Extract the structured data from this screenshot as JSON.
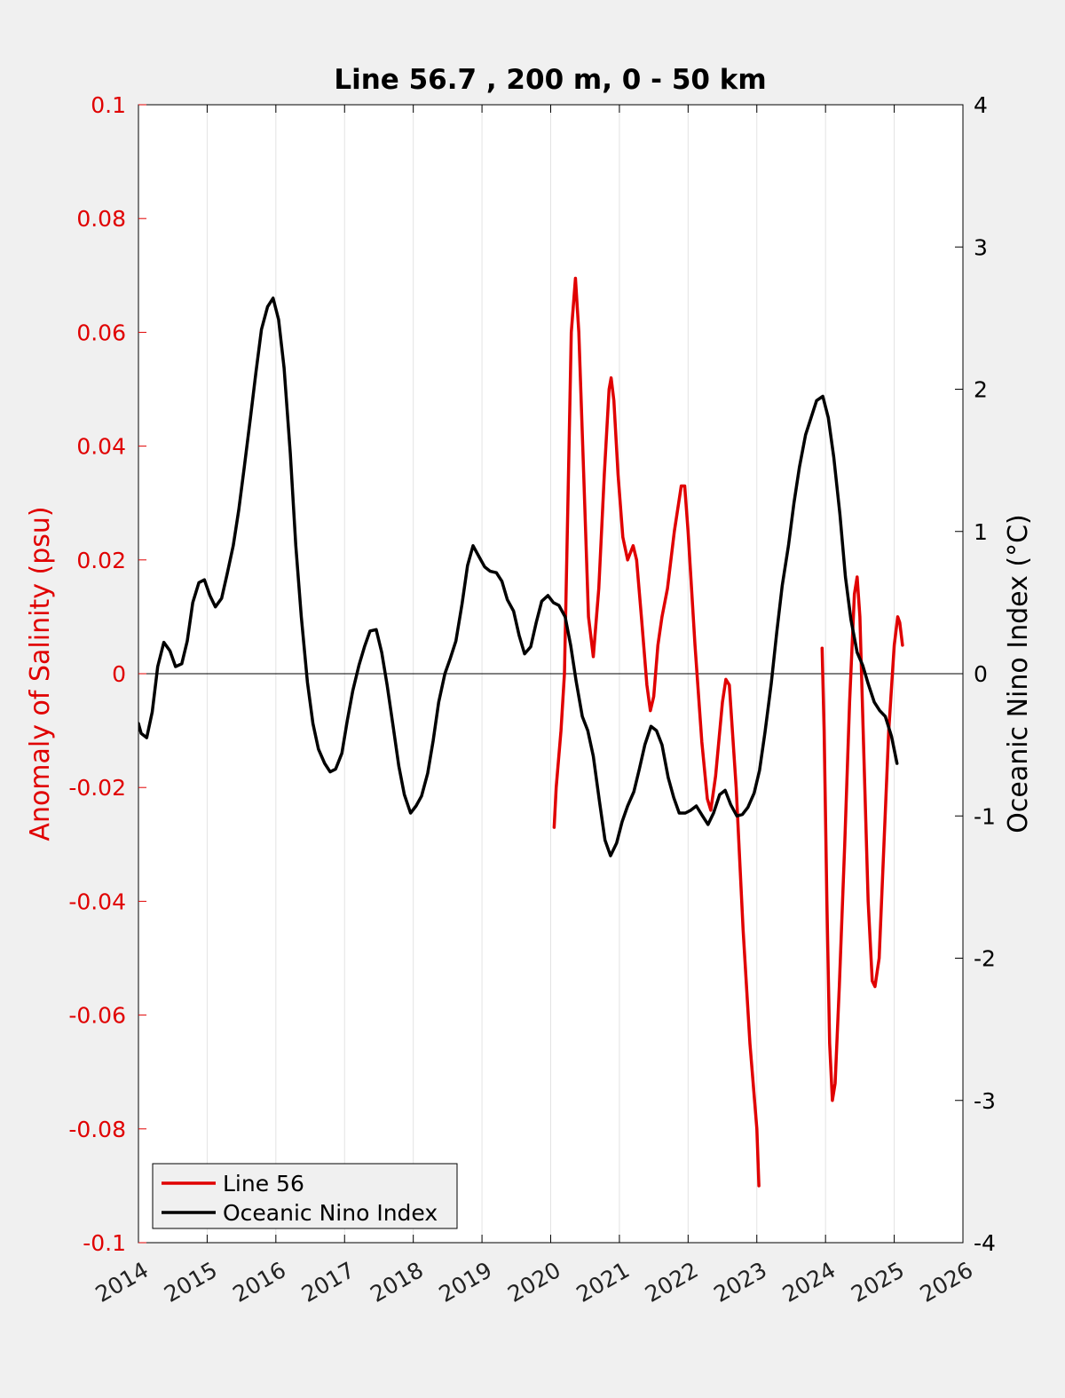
{
  "colors": {
    "background": "#f0f0f0",
    "plot_background": "#ffffff",
    "salinity": "#e00000",
    "oni": "#000000",
    "grid": "#e3e3e3",
    "axis": "#000000"
  },
  "chart_data": {
    "type": "line",
    "title": "Line 56.7 , 200 m, 0 - 50 km",
    "xlabel": "",
    "ylabel_left": "Anomaly of Salinity (psu)",
    "ylabel_right": "Oceanic Nino Index (°C)",
    "xlim": [
      2014,
      2026
    ],
    "ylim_left": [
      -0.1,
      0.1
    ],
    "ylim_right": [
      -4,
      4
    ],
    "x_ticks": [
      2014,
      2015,
      2016,
      2017,
      2018,
      2019,
      2020,
      2021,
      2022,
      2023,
      2024,
      2025,
      2026
    ],
    "x_tick_labels": [
      "2014",
      "2015",
      "2016",
      "2017",
      "2018",
      "2019",
      "2020",
      "2021",
      "2022",
      "2023",
      "2024",
      "2025",
      "2026"
    ],
    "y_left_ticks": [
      0.1,
      0.08,
      0.06,
      0.04,
      0.02,
      0,
      -0.02,
      -0.04,
      -0.06,
      -0.08,
      -0.1
    ],
    "y_left_tick_labels": [
      "0.1",
      "0.08",
      "0.06",
      "0.04",
      "0.02",
      "0",
      "-0.02",
      "-0.04",
      "-0.06",
      "-0.08",
      "-0.1"
    ],
    "y_right_ticks": [
      4,
      3,
      2,
      1,
      0,
      -1,
      -2,
      -3,
      -4
    ],
    "y_right_tick_labels": [
      "4",
      "3",
      "2",
      "1",
      "0",
      "-1",
      "-2",
      "-3",
      "-4"
    ],
    "grid": "x-only",
    "zero_line": true,
    "legend": {
      "position": "bottom-left",
      "entries": [
        "Line 56",
        "Oceanic Nino Index"
      ]
    },
    "series": [
      {
        "name": "Line 56",
        "axis": "left",
        "color": "#e00000",
        "segments": [
          [
            [
              2020.05,
              -0.027
            ],
            [
              2020.08,
              -0.02
            ],
            [
              2020.15,
              -0.01
            ],
            [
              2020.2,
              0.0
            ],
            [
              2020.25,
              0.03
            ],
            [
              2020.3,
              0.06
            ],
            [
              2020.36,
              0.0695
            ],
            [
              2020.41,
              0.06
            ],
            [
              2020.48,
              0.035
            ],
            [
              2020.55,
              0.01
            ],
            [
              2020.62,
              0.003
            ],
            [
              2020.7,
              0.015
            ],
            [
              2020.78,
              0.035
            ],
            [
              2020.85,
              0.05
            ],
            [
              2020.88,
              0.052
            ],
            [
              2020.92,
              0.048
            ],
            [
              2020.98,
              0.035
            ],
            [
              2021.05,
              0.024
            ],
            [
              2021.12,
              0.02
            ],
            [
              2021.2,
              0.0225
            ],
            [
              2021.25,
              0.02
            ],
            [
              2021.32,
              0.01
            ],
            [
              2021.4,
              -0.002
            ],
            [
              2021.45,
              -0.0065
            ],
            [
              2021.5,
              -0.004
            ],
            [
              2021.56,
              0.005
            ],
            [
              2021.62,
              0.01
            ],
            [
              2021.7,
              0.015
            ],
            [
              2021.8,
              0.025
            ],
            [
              2021.9,
              0.033
            ],
            [
              2021.95,
              0.033
            ],
            [
              2022.0,
              0.025
            ],
            [
              2022.1,
              0.005
            ],
            [
              2022.2,
              -0.012
            ],
            [
              2022.28,
              -0.022
            ],
            [
              2022.33,
              -0.024
            ],
            [
              2022.4,
              -0.018
            ],
            [
              2022.5,
              -0.005
            ],
            [
              2022.55,
              -0.001
            ],
            [
              2022.6,
              -0.002
            ],
            [
              2022.7,
              -0.02
            ],
            [
              2022.8,
              -0.045
            ],
            [
              2022.9,
              -0.065
            ],
            [
              2023.0,
              -0.08
            ],
            [
              2023.03,
              -0.09
            ]
          ],
          [
            [
              2023.95,
              0.0045
            ],
            [
              2023.98,
              -0.01
            ],
            [
              2024.02,
              -0.04
            ],
            [
              2024.06,
              -0.065
            ],
            [
              2024.1,
              -0.075
            ],
            [
              2024.14,
              -0.072
            ],
            [
              2024.2,
              -0.055
            ],
            [
              2024.28,
              -0.03
            ],
            [
              2024.35,
              -0.005
            ],
            [
              2024.42,
              0.014
            ],
            [
              2024.46,
              0.017
            ],
            [
              2024.5,
              0.01
            ],
            [
              2024.56,
              -0.015
            ],
            [
              2024.62,
              -0.04
            ],
            [
              2024.68,
              -0.054
            ],
            [
              2024.72,
              -0.055
            ],
            [
              2024.78,
              -0.05
            ],
            [
              2024.85,
              -0.03
            ],
            [
              2024.92,
              -0.01
            ],
            [
              2025.0,
              0.005
            ],
            [
              2025.05,
              0.01
            ],
            [
              2025.08,
              0.009
            ],
            [
              2025.12,
              0.005
            ]
          ]
        ]
      },
      {
        "name": "Oceanic Nino Index",
        "axis": "right",
        "color": "#000000",
        "segments": [
          [
            [
              2014.0,
              -0.35
            ],
            [
              2014.04,
              -0.42
            ],
            [
              2014.12,
              -0.45
            ],
            [
              2014.2,
              -0.27
            ],
            [
              2014.28,
              0.05
            ],
            [
              2014.37,
              0.22
            ],
            [
              2014.46,
              0.16
            ],
            [
              2014.54,
              0.05
            ],
            [
              2014.63,
              0.07
            ],
            [
              2014.71,
              0.23
            ],
            [
              2014.79,
              0.5
            ],
            [
              2014.88,
              0.64
            ],
            [
              2014.96,
              0.66
            ],
            [
              2015.04,
              0.55
            ],
            [
              2015.12,
              0.47
            ],
            [
              2015.21,
              0.53
            ],
            [
              2015.29,
              0.7
            ],
            [
              2015.38,
              0.9
            ],
            [
              2015.46,
              1.15
            ],
            [
              2015.54,
              1.45
            ],
            [
              2015.63,
              1.8
            ],
            [
              2015.71,
              2.12
            ],
            [
              2015.79,
              2.42
            ],
            [
              2015.88,
              2.58
            ],
            [
              2015.96,
              2.64
            ],
            [
              2016.04,
              2.49
            ],
            [
              2016.12,
              2.15
            ],
            [
              2016.21,
              1.55
            ],
            [
              2016.29,
              0.9
            ],
            [
              2016.37,
              0.4
            ],
            [
              2016.46,
              -0.06
            ],
            [
              2016.54,
              -0.35
            ],
            [
              2016.62,
              -0.53
            ],
            [
              2016.71,
              -0.63
            ],
            [
              2016.79,
              -0.69
            ],
            [
              2016.87,
              -0.67
            ],
            [
              2016.96,
              -0.56
            ],
            [
              2017.04,
              -0.33
            ],
            [
              2017.12,
              -0.12
            ],
            [
              2017.21,
              0.06
            ],
            [
              2017.29,
              0.19
            ],
            [
              2017.37,
              0.3
            ],
            [
              2017.46,
              0.31
            ],
            [
              2017.54,
              0.15
            ],
            [
              2017.62,
              -0.08
            ],
            [
              2017.71,
              -0.38
            ],
            [
              2017.79,
              -0.65
            ],
            [
              2017.87,
              -0.85
            ],
            [
              2017.96,
              -0.98
            ],
            [
              2018.04,
              -0.93
            ],
            [
              2018.12,
              -0.86
            ],
            [
              2018.21,
              -0.7
            ],
            [
              2018.29,
              -0.47
            ],
            [
              2018.37,
              -0.2
            ],
            [
              2018.46,
              0.0
            ],
            [
              2018.54,
              0.11
            ],
            [
              2018.62,
              0.23
            ],
            [
              2018.71,
              0.49
            ],
            [
              2018.79,
              0.76
            ],
            [
              2018.87,
              0.9
            ],
            [
              2018.96,
              0.82
            ],
            [
              2019.04,
              0.75
            ],
            [
              2019.12,
              0.72
            ],
            [
              2019.21,
              0.71
            ],
            [
              2019.29,
              0.65
            ],
            [
              2019.37,
              0.52
            ],
            [
              2019.46,
              0.44
            ],
            [
              2019.54,
              0.27
            ],
            [
              2019.62,
              0.14
            ],
            [
              2019.71,
              0.19
            ],
            [
              2019.79,
              0.36
            ],
            [
              2019.87,
              0.51
            ],
            [
              2019.96,
              0.55
            ],
            [
              2020.04,
              0.5
            ],
            [
              2020.12,
              0.48
            ],
            [
              2020.21,
              0.4
            ],
            [
              2020.29,
              0.2
            ],
            [
              2020.37,
              -0.05
            ],
            [
              2020.46,
              -0.3
            ],
            [
              2020.54,
              -0.4
            ],
            [
              2020.62,
              -0.58
            ],
            [
              2020.71,
              -0.9
            ],
            [
              2020.79,
              -1.17
            ],
            [
              2020.87,
              -1.28
            ],
            [
              2020.96,
              -1.19
            ],
            [
              2021.04,
              -1.04
            ],
            [
              2021.12,
              -0.93
            ],
            [
              2021.21,
              -0.83
            ],
            [
              2021.29,
              -0.67
            ],
            [
              2021.37,
              -0.5
            ],
            [
              2021.46,
              -0.37
            ],
            [
              2021.54,
              -0.4
            ],
            [
              2021.62,
              -0.5
            ],
            [
              2021.71,
              -0.73
            ],
            [
              2021.79,
              -0.87
            ],
            [
              2021.87,
              -0.98
            ],
            [
              2021.96,
              -0.98
            ],
            [
              2022.04,
              -0.96
            ],
            [
              2022.12,
              -0.93
            ],
            [
              2022.21,
              -1.0
            ],
            [
              2022.29,
              -1.06
            ],
            [
              2022.37,
              -0.98
            ],
            [
              2022.46,
              -0.85
            ],
            [
              2022.54,
              -0.82
            ],
            [
              2022.62,
              -0.92
            ],
            [
              2022.71,
              -1.0
            ],
            [
              2022.79,
              -0.99
            ],
            [
              2022.87,
              -0.94
            ],
            [
              2022.96,
              -0.84
            ],
            [
              2023.04,
              -0.68
            ],
            [
              2023.12,
              -0.41
            ],
            [
              2023.21,
              -0.07
            ],
            [
              2023.29,
              0.29
            ],
            [
              2023.37,
              0.62
            ],
            [
              2023.46,
              0.9
            ],
            [
              2023.54,
              1.2
            ],
            [
              2023.62,
              1.45
            ],
            [
              2023.71,
              1.68
            ],
            [
              2023.79,
              1.8
            ],
            [
              2023.87,
              1.92
            ],
            [
              2023.96,
              1.95
            ],
            [
              2024.04,
              1.8
            ],
            [
              2024.12,
              1.52
            ],
            [
              2024.21,
              1.12
            ],
            [
              2024.29,
              0.68
            ],
            [
              2024.37,
              0.38
            ],
            [
              2024.46,
              0.15
            ],
            [
              2024.54,
              0.06
            ],
            [
              2024.62,
              -0.07
            ],
            [
              2024.71,
              -0.2
            ],
            [
              2024.79,
              -0.26
            ],
            [
              2024.87,
              -0.3
            ],
            [
              2024.96,
              -0.44
            ],
            [
              2025.04,
              -0.63
            ]
          ]
        ]
      }
    ]
  }
}
